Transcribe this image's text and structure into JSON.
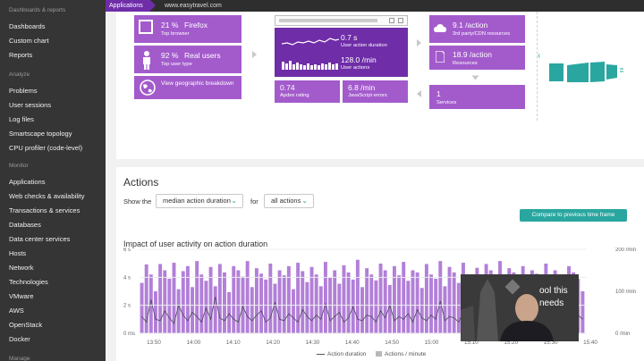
{
  "topbar": {
    "crumb_applications": "Applications",
    "crumb_host": "www.easytravel.com"
  },
  "sidebar": {
    "sections": [
      {
        "title": "Dashboards & reports",
        "items": [
          "Dashboards",
          "Custom chart",
          "Reports"
        ]
      },
      {
        "title": "Analyze",
        "items": [
          "Problems",
          "User sessions",
          "Log files",
          "Smartscape topology",
          "CPU profiler (code-level)"
        ]
      },
      {
        "title": "Monitor",
        "items": [
          "Applications",
          "Web checks & availability",
          "Transactions & services",
          "Databases",
          "Data center services",
          "Hosts",
          "Network",
          "Technologies",
          "VMware",
          "AWS",
          "OpenStack",
          "Docker"
        ]
      },
      {
        "title": "Manage",
        "items": []
      }
    ]
  },
  "flow": {
    "browser": {
      "value": "21 %",
      "name": "Firefox",
      "label": "Top browser"
    },
    "users": {
      "value": "92 %",
      "name": "Real users",
      "label": "Top user type"
    },
    "geo": {
      "label": "View geographic breakdown"
    },
    "duration": {
      "value": "0.7 s",
      "label": "User action duration"
    },
    "actions": {
      "value": "128.0 /min",
      "label": "User actions"
    },
    "apdex": {
      "value": "0.74",
      "label": "Apdex rating"
    },
    "js_errors": {
      "value": "6.8 /min",
      "label": "JavaScript errors"
    },
    "third_party": {
      "value": "9.1 /action",
      "label": "3rd party/CDN resources"
    },
    "resources": {
      "value": "18.9 /action",
      "label": "Resources"
    },
    "services": {
      "value": "1",
      "label": "Services"
    }
  },
  "actions": {
    "title": "Actions",
    "show_the": "Show the",
    "for": "for",
    "metric_select": "median action duration",
    "filter_select": "all actions",
    "chart_title": "Impact of user activity on action duration",
    "legend_duration": "Action duration",
    "legend_actions": "Actions / minute",
    "compare_button": "Compare to previous time frame"
  },
  "webcam": {
    "caption_line1": "ool this",
    "caption_line2": "needs"
  },
  "chart_data": {
    "type": "bar",
    "title": "Impact of user activity on action duration",
    "x_ticks": [
      "13:50",
      "14:00",
      "14:10",
      "14:20",
      "14:30",
      "14:40",
      "14:50",
      "15:00",
      "15:10",
      "15:20",
      "15:30",
      "15:40"
    ],
    "y_left_ticks": [
      "0 ms",
      "2 s",
      "4 s",
      "6 s"
    ],
    "y_right_ticks": [
      "0 /min",
      "100 /min",
      "200 /min"
    ],
    "y_left_range": [
      0,
      6
    ],
    "y_right_range": [
      0,
      200
    ],
    "series": [
      {
        "name": "Actions / minute",
        "kind": "bar",
        "axis": "right",
        "values": [
          120,
          164,
          140,
          100,
          165,
          150,
          130,
          168,
          105,
          148,
          160,
          110,
          172,
          140,
          125,
          158,
          112,
          165,
          145,
          98,
          160,
          150,
          135,
          172,
          110,
          155,
          142,
          128,
          166,
          118,
          150,
          138,
          160,
          105,
          168,
          148,
          122,
          158,
          140,
          112,
          170,
          132,
          150,
          118,
          162,
          145,
          128,
          175,
          110,
          155,
          140,
          126,
          166,
          150,
          115,
          160,
          138,
          170,
          125,
          150,
          145,
          108,
          165,
          140,
          130,
          172,
          112,
          158,
          145,
          120,
          168,
          140,
          130,
          156,
          110,
          165,
          150,
          138,
          172,
          118,
          155,
          145,
          126,
          160,
          135,
          150,
          142,
          118,
          166,
          130,
          150,
          140,
          125,
          160,
          145,
          130,
          100
        ]
      },
      {
        "name": "Action duration",
        "kind": "line",
        "axis": "left",
        "values": [
          1.2,
          0.8,
          2.4,
          1.0,
          0.9,
          1.6,
          1.1,
          0.7,
          2.0,
          1.3,
          0.9,
          1.5,
          1.2,
          0.8,
          1.8,
          1.0,
          2.6,
          1.1,
          0.9,
          1.4,
          1.0,
          0.8,
          1.9,
          1.2,
          0.9,
          1.3,
          1.6,
          0.8,
          1.1,
          2.2,
          1.0,
          0.9,
          1.4,
          1.1,
          0.8,
          1.7,
          1.2,
          0.9,
          1.3,
          1.0,
          2.1,
          0.9,
          1.2,
          1.5,
          0.8,
          1.1,
          1.9,
          1.0,
          0.9,
          1.3,
          1.2,
          0.8,
          1.6,
          1.1,
          2.0,
          0.9,
          1.2,
          1.0,
          1.4,
          0.8,
          1.7,
          1.1,
          0.9,
          1.3,
          1.0,
          2.3,
          0.9,
          1.2,
          1.1,
          0.8,
          1.5,
          1.0,
          1.9,
          0.9,
          1.2,
          1.3,
          0.8,
          1.1,
          1.6,
          1.0,
          0.9,
          1.4,
          1.2,
          0.8,
          1.8,
          1.0,
          1.1,
          0.9,
          1.3,
          1.5,
          0.8,
          1.0,
          1.2,
          1.1,
          0.9,
          1.3,
          1.0
        ]
      }
    ]
  },
  "colors": {
    "accent": "#6f2da8",
    "tile": "#a35bcc",
    "teal": "#2aa6a0",
    "sidebar": "#353535"
  }
}
